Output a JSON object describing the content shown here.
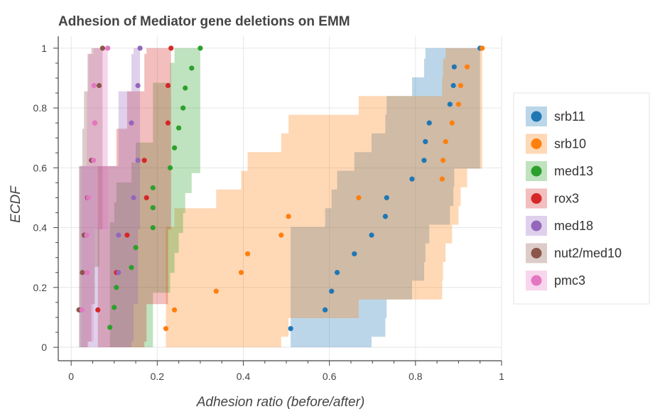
{
  "chart_data": {
    "type": "scatter",
    "title": "Adhesion of Mediator gene deletions on EMM",
    "xlabel": "Adhesion ratio (before/after)",
    "ylabel": "ECDF",
    "xlim": [
      -0.03,
      1.0
    ],
    "ylim": [
      -0.045,
      1.04
    ],
    "xticks": [
      0,
      0.2,
      0.4,
      0.6,
      0.8,
      1
    ],
    "xtick_labels": [
      "0",
      "0.2",
      "0.4",
      "0.6",
      "0.8",
      "1"
    ],
    "yticks": [
      0,
      0.2,
      0.4,
      0.6,
      0.8,
      1
    ],
    "ytick_labels": [
      "0",
      "0.2",
      "0.4",
      "0.6",
      "0.8",
      "1"
    ],
    "grid": true,
    "legend_position": "right",
    "confidence_bands": true,
    "series": [
      {
        "name": "srb11",
        "color": "#1f77b4",
        "x": [
          0.51,
          0.59,
          0.605,
          0.618,
          0.658,
          0.698,
          0.73,
          0.733,
          0.792,
          0.82,
          0.823,
          0.832,
          0.88,
          0.888,
          0.89,
          0.95
        ],
        "y": [
          0.0625,
          0.125,
          0.1875,
          0.25,
          0.3125,
          0.375,
          0.4375,
          0.5,
          0.5625,
          0.625,
          0.6875,
          0.75,
          0.8125,
          0.875,
          0.9375,
          1.0
        ]
      },
      {
        "name": "srb10",
        "color": "#ff7f0e",
        "x": [
          0.22,
          0.24,
          0.337,
          0.395,
          0.41,
          0.488,
          0.505,
          0.668,
          0.862,
          0.864,
          0.87,
          0.885,
          0.9,
          0.905,
          0.92,
          0.955
        ],
        "y": [
          0.0625,
          0.125,
          0.1875,
          0.25,
          0.3125,
          0.375,
          0.4375,
          0.5,
          0.5625,
          0.625,
          0.6875,
          0.75,
          0.8125,
          0.875,
          0.9375,
          1.0
        ]
      },
      {
        "name": "med13",
        "color": "#2ca02c",
        "x": [
          0.09,
          0.1,
          0.105,
          0.14,
          0.15,
          0.19,
          0.19,
          0.19,
          0.23,
          0.24,
          0.25,
          0.26,
          0.265,
          0.28,
          0.3
        ],
        "y": [
          0.0667,
          0.1333,
          0.2,
          0.2667,
          0.3333,
          0.4,
          0.4667,
          0.5333,
          0.6,
          0.6667,
          0.7333,
          0.8,
          0.8667,
          0.9333,
          1.0
        ]
      },
      {
        "name": "rox3",
        "color": "#d62728",
        "x": [
          0.062,
          0.105,
          0.13,
          0.175,
          0.17,
          0.225,
          0.225,
          0.232
        ],
        "y": [
          0.125,
          0.25,
          0.375,
          0.5,
          0.625,
          0.75,
          0.875,
          1.0
        ]
      },
      {
        "name": "med18",
        "color": "#9467bd",
        "x": [
          0.02,
          0.11,
          0.11,
          0.145,
          0.155,
          0.14,
          0.155,
          0.16
        ],
        "y": [
          0.125,
          0.25,
          0.375,
          0.5,
          0.625,
          0.75,
          0.875,
          1.0
        ]
      },
      {
        "name": "nut2/med10",
        "color": "#8c564b",
        "x": [
          0.018,
          0.026,
          0.03,
          0.038,
          0.047,
          0.055,
          0.065,
          0.073
        ],
        "y": [
          0.125,
          0.25,
          0.375,
          0.5,
          0.625,
          0.75,
          0.875,
          1.0
        ]
      },
      {
        "name": "pmc3",
        "color": "#e377c2",
        "x": [
          0.025,
          0.037,
          0.036,
          0.04,
          0.052,
          0.055,
          0.053,
          0.085
        ],
        "y": [
          0.125,
          0.25,
          0.375,
          0.5,
          0.625,
          0.75,
          0.875,
          1.0
        ]
      }
    ]
  }
}
